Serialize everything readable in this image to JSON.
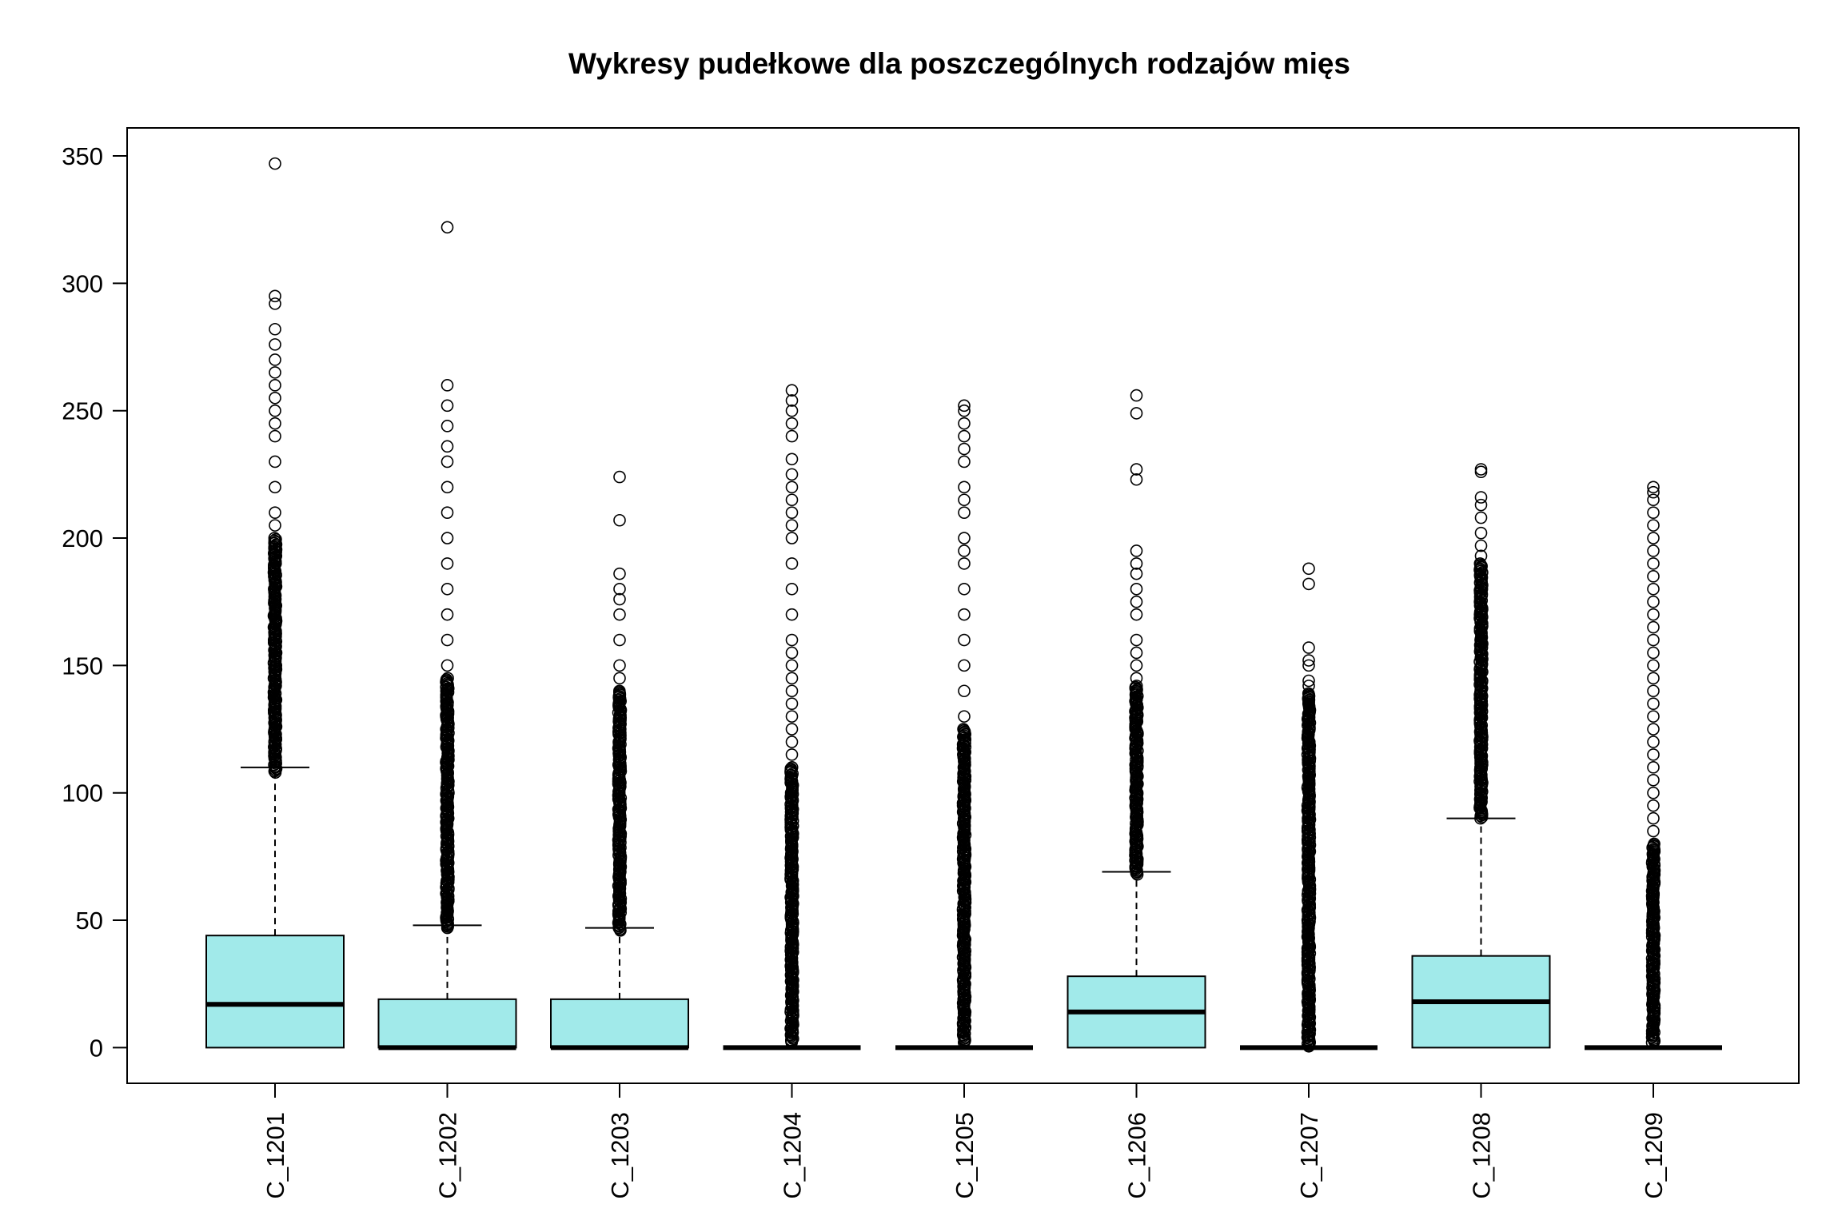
{
  "chart_data": {
    "type": "boxplot",
    "title": "Wykresy pudełkowe dla poszczególnych rodzajów mięs",
    "xlabel": "",
    "ylabel": "",
    "ylim": [
      -14,
      361
    ],
    "y_ticks": [
      0,
      50,
      100,
      150,
      200,
      250,
      300,
      350
    ],
    "grid": false,
    "box_color": "#a1eaea",
    "categories": [
      "C_1201",
      "C_1202",
      "C_1203",
      "C_1204",
      "C_1205",
      "C_1206",
      "C_1207",
      "C_1208",
      "C_1209"
    ],
    "boxes": [
      {
        "name": "C_1201",
        "min": 0,
        "q1": 0,
        "median": 17,
        "q3": 44,
        "max": 110,
        "outliers_dense": [
          108,
          200
        ],
        "outliers": [
          205,
          210,
          220,
          230,
          240,
          245,
          250,
          255,
          260,
          265,
          270,
          276,
          282,
          292,
          295,
          347
        ]
      },
      {
        "name": "C_1202",
        "min": 0,
        "q1": 0,
        "median": 0,
        "q3": 19,
        "max": 48,
        "outliers_dense": [
          47,
          145
        ],
        "outliers": [
          150,
          160,
          170,
          180,
          190,
          200,
          210,
          220,
          230,
          236,
          244,
          252,
          260,
          322
        ]
      },
      {
        "name": "C_1203",
        "min": 0,
        "q1": 0,
        "median": 0,
        "q3": 19,
        "max": 47,
        "outliers_dense": [
          46,
          140
        ],
        "outliers": [
          145,
          150,
          160,
          170,
          176,
          180,
          186,
          207,
          224
        ]
      },
      {
        "name": "C_1204",
        "min": 0,
        "q1": 0,
        "median": 0,
        "q3": 0,
        "max": 0,
        "outliers_dense": [
          2,
          110
        ],
        "outliers": [
          115,
          120,
          125,
          130,
          135,
          140,
          145,
          150,
          155,
          160,
          170,
          180,
          190,
          200,
          205,
          210,
          215,
          220,
          225,
          231,
          240,
          245,
          250,
          254,
          258
        ]
      },
      {
        "name": "C_1205",
        "min": 0,
        "q1": 0,
        "median": 0,
        "q3": 0,
        "max": 0,
        "outliers_dense": [
          2,
          125
        ],
        "outliers": [
          130,
          140,
          150,
          160,
          170,
          180,
          190,
          195,
          200,
          210,
          215,
          220,
          230,
          235,
          240,
          245,
          250,
          252
        ]
      },
      {
        "name": "C_1206",
        "min": 0,
        "q1": 0,
        "median": 14,
        "q3": 28,
        "max": 69,
        "outliers_dense": [
          68,
          142
        ],
        "outliers": [
          145,
          150,
          155,
          160,
          170,
          175,
          180,
          186,
          190,
          195,
          223,
          227,
          249,
          256
        ]
      },
      {
        "name": "C_1207",
        "min": 0,
        "q1": 0,
        "median": 0,
        "q3": 0,
        "max": 0,
        "outliers_dense": [
          0.5,
          139
        ],
        "outliers": [
          142,
          144,
          150,
          152,
          157,
          182,
          188
        ]
      },
      {
        "name": "C_1208",
        "min": 0,
        "q1": 0,
        "median": 18,
        "q3": 36,
        "max": 90,
        "outliers_dense": [
          90,
          190
        ],
        "outliers": [
          193,
          197,
          202,
          208,
          213,
          216,
          226,
          227
        ]
      },
      {
        "name": "C_1209",
        "min": 0,
        "q1": 0,
        "median": 0,
        "q3": 0,
        "max": 0,
        "outliers_dense": [
          2,
          80
        ],
        "outliers": [
          85,
          90,
          95,
          100,
          105,
          110,
          115,
          120,
          125,
          130,
          135,
          140,
          145,
          150,
          155,
          160,
          165,
          170,
          175,
          180,
          185,
          190,
          195,
          200,
          205,
          210,
          215,
          218,
          220
        ]
      }
    ]
  }
}
